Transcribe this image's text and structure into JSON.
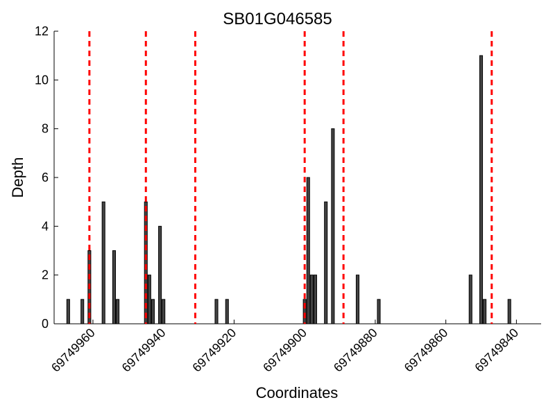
{
  "chart_data": {
    "type": "bar",
    "title": "SB01G046585",
    "xlabel": "Coordinates",
    "ylabel": "Depth",
    "xlim": [
      69749971,
      69749833
    ],
    "x_reversed": true,
    "ylim": [
      0,
      12
    ],
    "yticks": [
      0,
      2,
      4,
      6,
      8,
      10,
      12
    ],
    "xticks": [
      69749960,
      69749940,
      69749920,
      69749900,
      69749880,
      69749860,
      69749840
    ],
    "xtick_labels": [
      "69749960",
      "69749940",
      "69749920",
      "69749900",
      "69749880",
      "69749860",
      "69749840"
    ],
    "bar_color": "#444444",
    "bar_edge_color": "#000000",
    "x": [
      69749967,
      69749963,
      69749961,
      69749957,
      69749954,
      69749953,
      69749945,
      69749944,
      69749943,
      69749941,
      69749940,
      69749925,
      69749922,
      69749900,
      69749899,
      69749898,
      69749897,
      69749894,
      69749892,
      69749885,
      69749879,
      69749853,
      69749850,
      69749849,
      69749842
    ],
    "values": [
      1,
      1,
      3,
      5,
      3,
      1,
      5,
      2,
      1,
      4,
      1,
      1,
      1,
      1,
      6,
      2,
      2,
      5,
      8,
      2,
      1,
      2,
      11,
      1,
      1
    ],
    "reference_lines": {
      "color": "#ff0000",
      "style": "dashed",
      "x": [
        69749961,
        69749945,
        69749931,
        69749900,
        69749889,
        69749847
      ]
    },
    "grid": false
  }
}
